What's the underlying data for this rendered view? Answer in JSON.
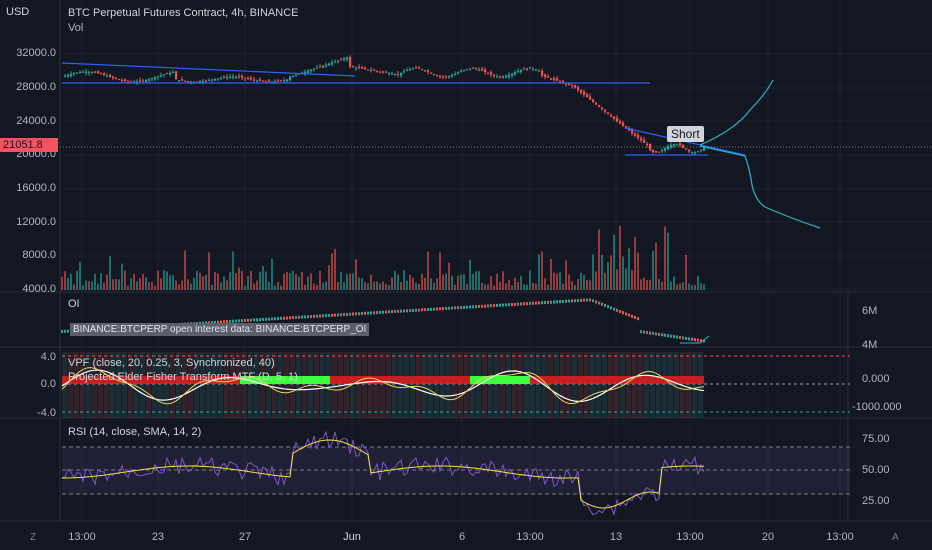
{
  "header": {
    "currency": "USD",
    "title": "BTC Perpetual Futures Contract, 4h, BINANCE",
    "vol_label": "Vol"
  },
  "price_axis": {
    "ticks": [
      "32000.0",
      "28000.0",
      "24000.0",
      "20000.0",
      "16000.0",
      "12000.0",
      "8000.0",
      "4000.0"
    ]
  },
  "last_price": {
    "value": "21051.8",
    "bg": "#f7525f"
  },
  "annotation": {
    "short_label": "Short"
  },
  "oi_panel": {
    "title": "OI",
    "tooltip": "BINANCE:BTCPERP open interest data: BINANCE:BTCPERP_OI",
    "axis": [
      "6M",
      "4M"
    ]
  },
  "vpf_panel": {
    "title": "VPF (close, 20, 0.25, 3, Synchronized, 40)",
    "subtitle": "Projected Elder Fisher Transform MTF (D, 5, 1)",
    "left_axis": [
      "4.0",
      "0.0",
      "-4.0"
    ],
    "right_axis": [
      "0.000",
      "-1000.000"
    ]
  },
  "rsi_panel": {
    "title": "RSI (14, close, SMA, 14, 2)",
    "axis": [
      "75.00",
      "50.00",
      "25.00"
    ]
  },
  "time_axis": {
    "ticks": [
      "13:00",
      "23",
      "27",
      "Jun",
      "6",
      "13:00",
      "13",
      "13:00",
      "20",
      "13:00"
    ]
  },
  "corners": {
    "left": "Z",
    "right": "A"
  },
  "colors": {
    "bg": "#131722",
    "up": "#26a69a",
    "down": "#ef5350",
    "trend": "#2962ff",
    "projection": "#2bb3c0",
    "rsi": "#7e57c2",
    "rsi_ma": "#f0e04a"
  }
}
